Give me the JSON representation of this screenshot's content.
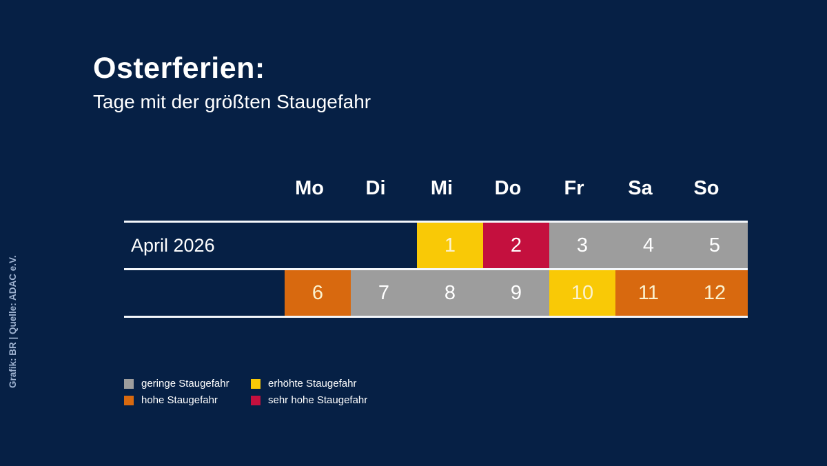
{
  "header": {
    "title": "Osterferien:",
    "subtitle": "Tage mit der größten Staugefahr"
  },
  "source_note": "Grafik: BR | Quelle: ADAC e.V.",
  "colors": {
    "background": "#062045",
    "rule_line": "#F4F7FB",
    "text": "#FFFFFF",
    "source_text": "#9FB3D1",
    "levels": {
      "none": "transparent",
      "gering": "#9D9D9D",
      "erhoeht": "#F9C906",
      "hoch": "#D8690F",
      "sehr_hoch": "#C4103E"
    },
    "number_colors": {
      "gering": "#FFFFFF",
      "erhoeht": "#FBF2CF",
      "hoch": "#FBF2CF",
      "sehr_hoch": "#FFFFFF"
    }
  },
  "chart_data": {
    "type": "table",
    "title": "Osterferien: Tage mit der größten Staugefahr",
    "weekdays": [
      "Mo",
      "Di",
      "Mi",
      "Do",
      "Fr",
      "Sa",
      "So"
    ],
    "rows": [
      {
        "label": "April 2026",
        "cells": [
          {
            "day": "Mo",
            "value": "",
            "level": "none"
          },
          {
            "day": "Di",
            "value": "",
            "level": "none"
          },
          {
            "day": "Mi",
            "value": "1",
            "level": "erhoeht"
          },
          {
            "day": "Do",
            "value": "2",
            "level": "sehr_hoch"
          },
          {
            "day": "Fr",
            "value": "3",
            "level": "gering"
          },
          {
            "day": "Sa",
            "value": "4",
            "level": "gering"
          },
          {
            "day": "So",
            "value": "5",
            "level": "gering"
          }
        ]
      },
      {
        "label": "",
        "cells": [
          {
            "day": "Mo",
            "value": "6",
            "level": "hoch"
          },
          {
            "day": "Di",
            "value": "7",
            "level": "gering"
          },
          {
            "day": "Mi",
            "value": "8",
            "level": "gering"
          },
          {
            "day": "Do",
            "value": "9",
            "level": "gering"
          },
          {
            "day": "Fr",
            "value": "10",
            "level": "erhoeht"
          },
          {
            "day": "Sa",
            "value": "11",
            "level": "hoch"
          },
          {
            "day": "So",
            "value": "12",
            "level": "hoch"
          }
        ]
      }
    ],
    "legend": [
      {
        "label": "geringe Staugefahr",
        "level": "gering"
      },
      {
        "label": "erhöhte Staugefahr",
        "level": "erhoeht"
      },
      {
        "label": "hohe Staugefahr",
        "level": "hoch"
      },
      {
        "label": "sehr hohe Staugefahr",
        "level": "sehr_hoch"
      }
    ],
    "layout": {
      "legend_position": "bottom-left",
      "grid": "white horizontal rules above, between and below the two calendar rows"
    }
  }
}
